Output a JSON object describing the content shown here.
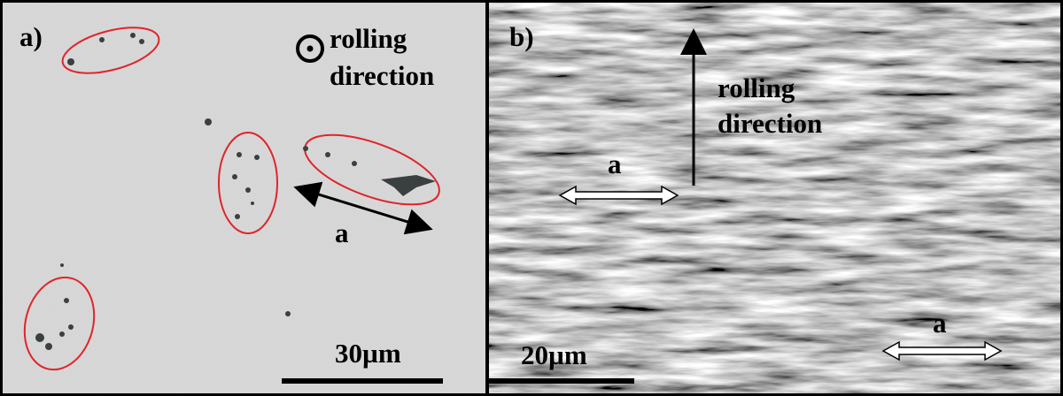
{
  "panels": [
    {
      "label": "a)",
      "annotation": [
        "rolling",
        "direction"
      ],
      "arrow_label": "a",
      "scale_bar": "30µm"
    },
    {
      "label": "b)",
      "annotation": [
        "rolling",
        "direction"
      ],
      "arrow_labels": [
        "a",
        "a"
      ],
      "scale_bar": "20µm"
    }
  ]
}
